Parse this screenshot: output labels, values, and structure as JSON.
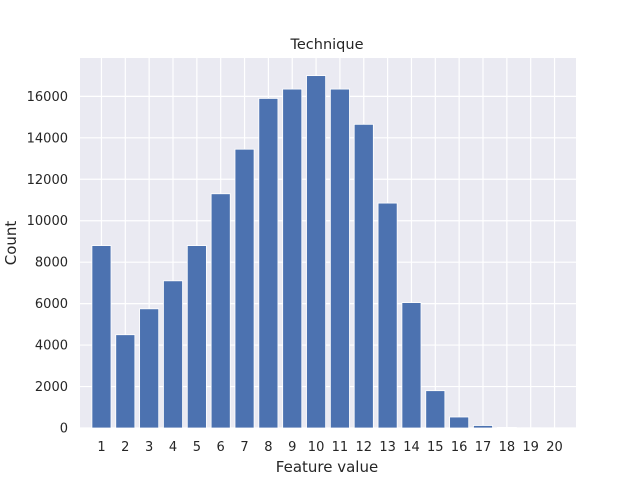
{
  "chart_data": {
    "type": "bar",
    "title": "Technique",
    "xlabel": "Feature value",
    "ylabel": "Count",
    "categories": [
      "1",
      "2",
      "3",
      "4",
      "5",
      "6",
      "7",
      "8",
      "9",
      "10",
      "11",
      "12",
      "13",
      "14",
      "15",
      "16",
      "17",
      "18",
      "19",
      "20"
    ],
    "values": [
      8800,
      4500,
      5750,
      7100,
      8800,
      11300,
      13450,
      15900,
      16350,
      17000,
      16350,
      14650,
      10850,
      6050,
      1800,
      530,
      120,
      30,
      10,
      5
    ],
    "yticks": [
      0,
      2000,
      4000,
      6000,
      8000,
      10000,
      12000,
      14000,
      16000
    ],
    "ylim": [
      0,
      17850
    ],
    "grid": true,
    "colors": {
      "bar": "#4c72b0",
      "background": "#eaeaf2",
      "grid": "#ffffff"
    }
  }
}
